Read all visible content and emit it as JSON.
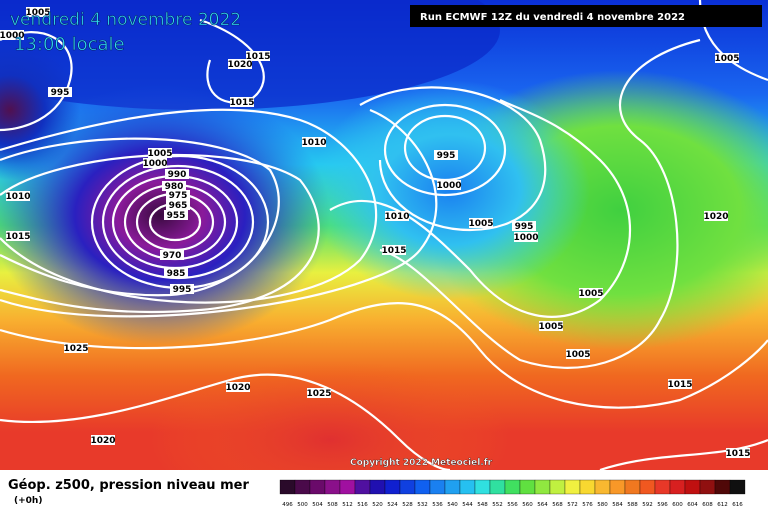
{
  "header": {
    "date": "vendredi 4 novembre 2022",
    "time": "13:00 locale",
    "run": "Run ECMWF 12Z du vendredi 4 novembre 2022"
  },
  "copyright": "Copyright 2022 Meteociel.fr",
  "legend": {
    "title": "Géop. z500, pression niveau mer",
    "step": "(+0h)",
    "scale": [
      496,
      500,
      504,
      508,
      512,
      516,
      520,
      524,
      528,
      532,
      536,
      540,
      544,
      548,
      552,
      556,
      560,
      564,
      568,
      572,
      576,
      580,
      584,
      588,
      592,
      596,
      600,
      604,
      608,
      612,
      616
    ]
  },
  "isobar_labels": [
    "1005",
    "1000",
    "995",
    "1015",
    "1020",
    "1015",
    "1010",
    "1005",
    "1000",
    "990",
    "980",
    "975",
    "965",
    "955",
    "970",
    "985",
    "995",
    "1010",
    "1015",
    "995",
    "1000",
    "1010",
    "1005",
    "995",
    "1000",
    "1015",
    "1005",
    "1005",
    "1005",
    "1015",
    "1020",
    "1005",
    "1025",
    "1020",
    "1025",
    "1020",
    "1015"
  ]
}
